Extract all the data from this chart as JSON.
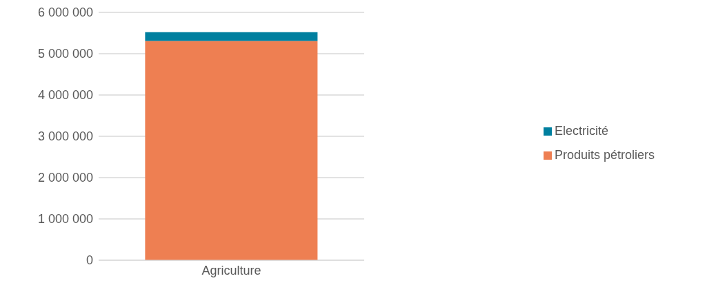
{
  "chart_data": {
    "type": "bar",
    "stacked": true,
    "categories": [
      "Agriculture"
    ],
    "series": [
      {
        "name": "Produits pétroliers",
        "color": "#ee7f52",
        "values": [
          5310000
        ]
      },
      {
        "name": "Electricité",
        "color": "#007f9f",
        "values": [
          210000
        ]
      }
    ],
    "ylim": [
      0,
      6000000
    ],
    "yticks": [
      {
        "value": 0,
        "label": "0"
      },
      {
        "value": 1000000,
        "label": "1 000 000"
      },
      {
        "value": 2000000,
        "label": "2 000 000"
      },
      {
        "value": 3000000,
        "label": "3 000 000"
      },
      {
        "value": 4000000,
        "label": "4 000 000"
      },
      {
        "value": 5000000,
        "label": "5 000 000"
      },
      {
        "value": 6000000,
        "label": "6 000 000"
      }
    ],
    "grid": "y",
    "legend": "right"
  }
}
